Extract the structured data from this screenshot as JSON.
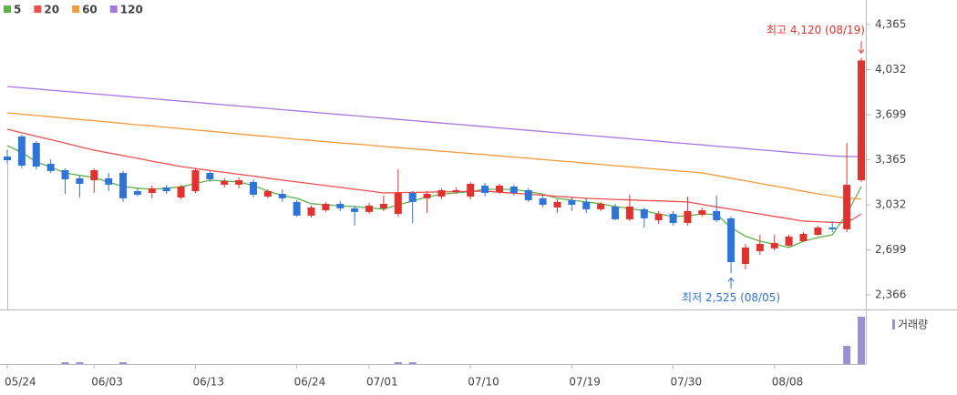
{
  "chart_data": {
    "type": "candlestick",
    "categories": [
      "05/24",
      null,
      null,
      null,
      null,
      null,
      "06/03",
      null,
      null,
      null,
      null,
      null,
      null,
      "06/13",
      null,
      null,
      null,
      null,
      null,
      null,
      "06/24",
      null,
      null,
      null,
      null,
      "07/01",
      null,
      null,
      null,
      null,
      null,
      null,
      "07/10",
      null,
      null,
      null,
      null,
      null,
      null,
      "07/19",
      null,
      null,
      null,
      null,
      null,
      null,
      "07/30",
      null,
      null,
      null,
      null,
      null,
      null,
      "08/08",
      null,
      null,
      null,
      null,
      null,
      null
    ],
    "open": [
      3389,
      3537,
      3490,
      3335,
      3288,
      3228,
      3214,
      3228,
      3268,
      3133,
      3120,
      3160,
      3086,
      3133,
      3268,
      3181,
      3181,
      3201,
      3093,
      3113,
      3053,
      2952,
      2992,
      3039,
      3006,
      2979,
      3006,
      2965,
      3120,
      3080,
      3093,
      3127,
      3093,
      3174,
      3127,
      3167,
      3140,
      3080,
      3012,
      3066,
      3053,
      2999,
      3019,
      2925,
      2999,
      2918,
      2965,
      2898,
      2958,
      2986,
      2932,
      2595,
      2689,
      2710,
      2730,
      2763,
      2810,
      2864,
      2851,
      3214
    ],
    "high": [
      3440,
      3550,
      3503,
      3369,
      3302,
      3248,
      3302,
      3268,
      3282,
      3154,
      3174,
      3180,
      3180,
      3302,
      3282,
      3228,
      3234,
      3221,
      3147,
      3147,
      3066,
      3026,
      3053,
      3059,
      3026,
      3046,
      3100,
      3295,
      3133,
      3133,
      3154,
      3160,
      3201,
      3194,
      3187,
      3180,
      3154,
      3100,
      3073,
      3086,
      3080,
      3053,
      3039,
      3107,
      3012,
      2986,
      2986,
      3093,
      3012,
      3100,
      2945,
      2743,
      2810,
      2810,
      2810,
      2830,
      2878,
      2911,
      3490,
      4120
    ],
    "low": [
      3335,
      3302,
      3295,
      3268,
      3113,
      3086,
      3120,
      3133,
      3053,
      3093,
      3080,
      3113,
      3073,
      3120,
      3201,
      3160,
      3154,
      3086,
      3080,
      3053,
      2945,
      2938,
      2979,
      2986,
      2878,
      2965,
      2986,
      2945,
      2898,
      2972,
      3073,
      3113,
      3073,
      3093,
      3113,
      3100,
      3053,
      3012,
      2972,
      2986,
      2972,
      2986,
      2918,
      2911,
      2864,
      2891,
      2878,
      2878,
      2945,
      2905,
      2525,
      2555,
      2662,
      2696,
      2723,
      2757,
      2804,
      2830,
      2830,
      3201
    ],
    "close": [
      3362,
      3322,
      3315,
      3282,
      3221,
      3187,
      3288,
      3181,
      3080,
      3107,
      3154,
      3133,
      3167,
      3288,
      3221,
      3208,
      3214,
      3107,
      3133,
      3080,
      2952,
      3012,
      3039,
      3006,
      2979,
      3026,
      3039,
      3120,
      3053,
      3113,
      3140,
      3140,
      3187,
      3120,
      3174,
      3120,
      3066,
      3032,
      3053,
      3032,
      2999,
      3039,
      2925,
      3019,
      2932,
      2965,
      2898,
      2986,
      2992,
      2918,
      2608,
      2716,
      2743,
      2750,
      2797,
      2817,
      2864,
      2851,
      3180,
      4100
    ],
    "up_color": "#e0322e",
    "down_color": "#2f74d9",
    "series": [
      {
        "name": "5",
        "color": "#5db34a",
        "values": [
          3470,
          3420,
          3349,
          3310,
          3268,
          3250,
          3234,
          3200,
          3167,
          3155,
          3147,
          3155,
          3165,
          3190,
          3214,
          3208,
          3201,
          3175,
          3133,
          3100,
          3080,
          3040,
          3032,
          3025,
          3019,
          3010,
          2999,
          3032,
          3060,
          3090,
          3110,
          3120,
          3130,
          3147,
          3147,
          3147,
          3130,
          3110,
          3080,
          3066,
          3053,
          3040,
          3019,
          3005,
          2986,
          2965,
          2945,
          2950,
          2965,
          2960,
          2864,
          2800,
          2763,
          2740,
          2716,
          2763,
          2790,
          2810,
          2965,
          3167
        ]
      },
      {
        "name": "20",
        "color": "#ee4f4f",
        "values": [
          3591,
          3565,
          3539,
          3514,
          3488,
          3462,
          3436,
          3416,
          3396,
          3376,
          3355,
          3335,
          3315,
          3301,
          3286,
          3272,
          3258,
          3244,
          3229,
          3215,
          3201,
          3188,
          3174,
          3161,
          3147,
          3134,
          3120,
          3122,
          3124,
          3126,
          3128,
          3129,
          3131,
          3133,
          3125,
          3118,
          3110,
          3103,
          3095,
          3088,
          3080,
          3076,
          3072,
          3068,
          3064,
          3061,
          3057,
          3053,
          3035,
          3017,
          2999,
          2981,
          2964,
          2946,
          2929,
          2911,
          2907,
          2902,
          2898,
          2965
        ]
      },
      {
        "name": "60",
        "color": "#f39a3a",
        "values": [
          3712,
          3702,
          3693,
          3683,
          3673,
          3663,
          3654,
          3644,
          3634,
          3624,
          3615,
          3605,
          3595,
          3585,
          3576,
          3566,
          3556,
          3546,
          3537,
          3527,
          3517,
          3508,
          3499,
          3490,
          3482,
          3473,
          3464,
          3455,
          3446,
          3438,
          3429,
          3420,
          3411,
          3403,
          3394,
          3385,
          3376,
          3367,
          3358,
          3349,
          3340,
          3331,
          3322,
          3313,
          3304,
          3295,
          3286,
          3277,
          3268,
          3249,
          3229,
          3210,
          3190,
          3171,
          3152,
          3132,
          3113,
          3097,
          3080,
          3075
        ]
      },
      {
        "name": "120",
        "color": "#a874e0",
        "values": [
          3907,
          3898,
          3889,
          3880,
          3871,
          3862,
          3853,
          3844,
          3835,
          3826,
          3817,
          3808,
          3799,
          3790,
          3781,
          3772,
          3763,
          3754,
          3745,
          3736,
          3727,
          3718,
          3709,
          3700,
          3691,
          3682,
          3673,
          3664,
          3655,
          3646,
          3637,
          3628,
          3619,
          3610,
          3601,
          3592,
          3583,
          3574,
          3565,
          3556,
          3547,
          3538,
          3529,
          3520,
          3511,
          3502,
          3493,
          3484,
          3475,
          3466,
          3457,
          3448,
          3439,
          3430,
          3421,
          3412,
          3403,
          3394,
          3389,
          3389
        ]
      }
    ],
    "volume": {
      "name": "거래량",
      "color": "#9b8fd6",
      "values": [
        0,
        0,
        0,
        0,
        2,
        2,
        0,
        0,
        2,
        0,
        0,
        0,
        0,
        0,
        0,
        0,
        0,
        0,
        0,
        0,
        0,
        0,
        0,
        0,
        0,
        0,
        0,
        2,
        2,
        0,
        0,
        0,
        0,
        0,
        0,
        0,
        0,
        0,
        0,
        0,
        0,
        0,
        0,
        0,
        0,
        0,
        0,
        0,
        0,
        0,
        0,
        0,
        0,
        0,
        0,
        0,
        0,
        0,
        20,
        52
      ],
      "ylim": [
        0,
        55
      ]
    },
    "ylim": [
      2258,
      4547
    ],
    "yticks": [
      {
        "value": 4365,
        "label": "4,365"
      },
      {
        "value": 4032,
        "label": "4,032"
      },
      {
        "value": 3699,
        "label": "3,699"
      },
      {
        "value": 3365,
        "label": "3,365"
      },
      {
        "value": 3032,
        "label": "3,032"
      },
      {
        "value": 2699,
        "label": "2,699"
      },
      {
        "value": 2366,
        "label": "2,366"
      }
    ],
    "annotations": [
      {
        "label": "최고 4,120 (08/19)",
        "value": 4120,
        "index": 59,
        "color": "#e0322e"
      },
      {
        "label": "최저 2,525 (08/05)",
        "value": 2525,
        "index": 50,
        "color": "#2f74d9"
      }
    ]
  }
}
